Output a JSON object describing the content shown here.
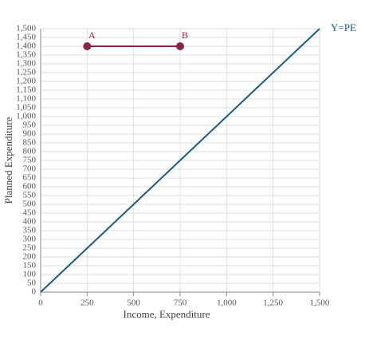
{
  "chart_data": {
    "type": "line",
    "x_label": "Income, Expenditure",
    "y_label": "Planned Expenditure",
    "xlim": [
      0,
      1500
    ],
    "ylim": [
      0,
      1500
    ],
    "xticks": [
      0,
      250,
      500,
      750,
      {
        "value": 1000,
        "label": "1,000"
      },
      {
        "value": 1250,
        "label": "1,250"
      },
      {
        "value": 1500,
        "label": "1,500"
      }
    ],
    "yticks": [
      0,
      50,
      100,
      150,
      200,
      250,
      300,
      350,
      400,
      450,
      500,
      550,
      600,
      650,
      700,
      750,
      800,
      850,
      900,
      950,
      {
        "value": 1000,
        "label": "1,000"
      },
      {
        "value": 1050,
        "label": "1,050"
      },
      {
        "value": 1100,
        "label": "1,100"
      },
      {
        "value": 1150,
        "label": "1,150"
      },
      {
        "value": 1200,
        "label": "1,200"
      },
      {
        "value": 1250,
        "label": "1,250"
      },
      {
        "value": 1300,
        "label": "1,300"
      },
      {
        "value": 1350,
        "label": "1,350"
      },
      {
        "value": 1400,
        "label": "1,400"
      },
      {
        "value": 1450,
        "label": "1,450"
      },
      {
        "value": 1500,
        "label": "1,500"
      }
    ],
    "grid": true,
    "series": [
      {
        "name": "Y=PE",
        "color": "#1b5b7a",
        "x": [
          0,
          1500
        ],
        "values": [
          0,
          1500
        ]
      },
      {
        "color": "#8a2442",
        "x": [
          250,
          750
        ],
        "values": [
          1400,
          1400
        ],
        "point_labels": [
          "A",
          "B"
        ],
        "markers": true
      }
    ]
  }
}
